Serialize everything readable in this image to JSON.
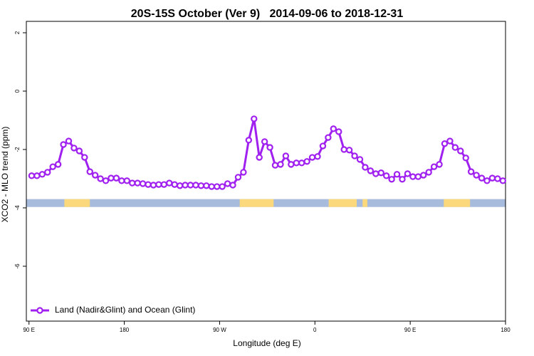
{
  "chart_data": {
    "type": "line",
    "title": "20S-15S October (Ver 9)   2014-09-06 to 2018-12-31",
    "xlabel": "Longitude (deg E)",
    "ylabel": "XCO2 - MLO trend (ppm)",
    "xlim": [
      87.5,
      540
    ],
    "ylim": [
      -7.88,
      2.39
    ],
    "xticks": [
      {
        "value": 90,
        "label": "90 E"
      },
      {
        "value": 180,
        "label": "180"
      },
      {
        "value": 270,
        "label": "90 W"
      },
      {
        "value": 360,
        "label": "0"
      },
      {
        "value": 450,
        "label": "90 E"
      },
      {
        "value": 540,
        "label": "180"
      }
    ],
    "yticks": [
      2,
      0,
      -2,
      -4,
      -6
    ],
    "legend_position": "bottom-left",
    "surface_strip": {
      "ylim": [
        -3.97,
        -3.7
      ],
      "ocean_color": "#a7bcdd",
      "land_color": "#fbd87c",
      "land_ranges": [
        [
          123.4,
          147.5
        ],
        [
          289,
          321
        ],
        [
          373,
          399.5
        ],
        [
          405,
          409.5
        ],
        [
          481.7,
          506.5
        ]
      ]
    },
    "series": [
      {
        "name": "Land (Nadir&Glint) and Ocean (Glint)",
        "color": "#a020f0",
        "x": [
          92.5,
          97.5,
          102.5,
          107.5,
          112.5,
          117.5,
          122.5,
          127.5,
          132.5,
          137.5,
          142.5,
          147.5,
          152.5,
          157.5,
          162.5,
          167.5,
          172.5,
          177.5,
          182.5,
          187.5,
          192.5,
          197.5,
          202.5,
          207.5,
          212.5,
          217.5,
          222.5,
          227.5,
          232.5,
          237.5,
          242.5,
          247.5,
          252.5,
          257.5,
          262.5,
          267.5,
          272.5,
          277.5,
          282.5,
          287.5,
          292.5,
          297.5,
          302.5,
          307.5,
          312.5,
          317.5,
          322.5,
          327.5,
          332.5,
          337.5,
          342.5,
          347.5,
          352.5,
          357.5,
          362.5,
          367.5,
          372.5,
          377.5,
          382.5,
          387.5,
          392.5,
          397.5,
          402.5,
          407.5,
          412.5,
          417.5,
          422.5,
          427.5,
          432.5,
          437.5,
          442.5,
          447.5,
          452.5,
          457.5,
          462.5,
          467.5,
          472.5,
          477.5,
          482.5,
          487.5,
          492.5,
          497.5,
          502.5,
          507.5,
          512.5,
          517.5,
          522.5,
          527.5,
          532.5,
          537.5
        ],
        "values": [
          -2.9,
          -2.9,
          -2.85,
          -2.78,
          -2.59,
          -2.51,
          -1.83,
          -1.71,
          -1.95,
          -2.05,
          -2.27,
          -2.76,
          -2.88,
          -3.0,
          -3.07,
          -2.98,
          -2.98,
          -3.07,
          -3.07,
          -3.15,
          -3.15,
          -3.17,
          -3.2,
          -3.22,
          -3.2,
          -3.2,
          -3.15,
          -3.2,
          -3.24,
          -3.22,
          -3.22,
          -3.22,
          -3.24,
          -3.24,
          -3.27,
          -3.27,
          -3.27,
          -3.17,
          -3.22,
          -2.95,
          -2.78,
          -1.68,
          -0.95,
          -2.27,
          -1.73,
          -1.93,
          -2.54,
          -2.51,
          -2.22,
          -2.51,
          -2.46,
          -2.46,
          -2.41,
          -2.27,
          -2.24,
          -1.88,
          -1.59,
          -1.29,
          -1.39,
          -2.0,
          -2.02,
          -2.22,
          -2.34,
          -2.61,
          -2.73,
          -2.83,
          -2.8,
          -2.9,
          -3.02,
          -2.85,
          -3.02,
          -2.83,
          -2.93,
          -2.93,
          -2.88,
          -2.78,
          -2.59,
          -2.51,
          -1.8,
          -1.71,
          -1.93,
          -2.05,
          -2.29,
          -2.76,
          -2.88,
          -2.98,
          -3.07,
          -2.98,
          -3.0,
          -3.07
        ]
      }
    ]
  }
}
